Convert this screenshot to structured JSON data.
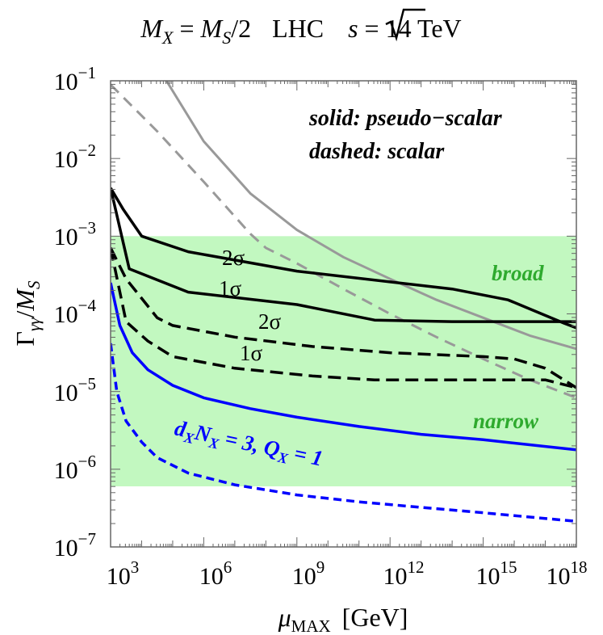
{
  "chart_data": {
    "type": "line",
    "title": {
      "lhs": "M",
      "lhs_sub": "X",
      "eq": " = ",
      "rhs": "M",
      "rhs_sub": "S",
      "rhs_tail": "/2",
      "collider": "LHC",
      "sqrt_arg": "s",
      "energy": " = 14 TeV"
    },
    "xlabel": {
      "main": "μ",
      "sub": "MAX",
      "unit": "[GeV]"
    },
    "ylabel": {
      "main": "Γ",
      "sub1": "γγ",
      "slash": "/",
      "m": "M",
      "sub2": "S"
    },
    "x_scale": "log10",
    "y_scale": "log10",
    "x_range": [
      3,
      18
    ],
    "y_range": [
      -7,
      -1
    ],
    "x_ticks": [
      {
        "base": "10",
        "exp": "3",
        "value": 3
      },
      {
        "base": "10",
        "exp": "6",
        "value": 6
      },
      {
        "base": "10",
        "exp": "9",
        "value": 9
      },
      {
        "base": "10",
        "exp": "12",
        "value": 12
      },
      {
        "base": "10",
        "exp": "15",
        "value": 15
      },
      {
        "base": "10",
        "exp": "18",
        "value": 18
      }
    ],
    "y_ticks": [
      {
        "base": "10",
        "exp": "−1",
        "value": -1
      },
      {
        "base": "10",
        "exp": "−2",
        "value": -2
      },
      {
        "base": "10",
        "exp": "−3",
        "value": -3
      },
      {
        "base": "10",
        "exp": "−4",
        "value": -4
      },
      {
        "base": "10",
        "exp": "−5",
        "value": -5
      },
      {
        "base": "10",
        "exp": "−6",
        "value": -6
      },
      {
        "base": "10",
        "exp": "−7",
        "value": -7
      }
    ],
    "band": {
      "y_min": -6.22,
      "y_max": -3.0,
      "color": "#c2f8c0"
    },
    "series": [
      {
        "name": "gray-solid",
        "color": "#999999",
        "dash": "none",
        "width": 3,
        "x": [
          4.8,
          6.0,
          7.5,
          9.0,
          10.5,
          12.0,
          13.5,
          15.0,
          16.5,
          18.0
        ],
        "y": [
          -1.0,
          -1.78,
          -2.45,
          -2.92,
          -3.27,
          -3.55,
          -3.82,
          -4.05,
          -4.28,
          -4.45
        ]
      },
      {
        "name": "gray-dashed",
        "color": "#999999",
        "dash": "14,9",
        "width": 3,
        "x": [
          3.0,
          4.5,
          6.0,
          7.5,
          8.0,
          9.0,
          10.5,
          12.0,
          13.5,
          15.0,
          16.5,
          18.0
        ],
        "y": [
          -1.05,
          -1.65,
          -2.3,
          -2.97,
          -3.15,
          -3.35,
          -3.68,
          -4.0,
          -4.3,
          -4.58,
          -4.85,
          -5.08
        ]
      },
      {
        "name": "black-solid-2sigma",
        "color": "#000000",
        "dash": "none",
        "width": 3.5,
        "x": [
          3.0,
          3.4,
          4.0,
          5.5,
          9.0,
          14.0,
          15.8,
          17.6,
          18.0
        ],
        "y": [
          -2.38,
          -2.65,
          -3.0,
          -3.2,
          -3.45,
          -3.68,
          -3.82,
          -4.12,
          -4.18
        ]
      },
      {
        "name": "black-solid-1sigma",
        "color": "#000000",
        "dash": "none",
        "width": 3.5,
        "x": [
          3.0,
          3.6,
          5.5,
          9.0,
          11.5,
          14.0,
          18.0
        ],
        "y": [
          -2.38,
          -3.42,
          -3.72,
          -3.88,
          -4.08,
          -4.1,
          -4.1
        ]
      },
      {
        "name": "black-dashed-2sigma",
        "color": "#000000",
        "dash": "16,8",
        "width": 3.5,
        "x": [
          3.0,
          3.5,
          4.5,
          5.0,
          7.0,
          9.5,
          12.0,
          15.0,
          16.0,
          17.0,
          18.0
        ],
        "y": [
          -3.15,
          -3.55,
          -4.05,
          -4.15,
          -4.3,
          -4.42,
          -4.5,
          -4.55,
          -4.58,
          -4.7,
          -4.95
        ]
      },
      {
        "name": "black-dashed-1sigma",
        "color": "#000000",
        "dash": "16,8",
        "width": 3.5,
        "x": [
          3.0,
          3.5,
          4.2,
          5.0,
          7.0,
          9.5,
          11.5,
          14.0,
          17.0,
          18.0
        ],
        "y": [
          -3.15,
          -4.1,
          -4.35,
          -4.55,
          -4.7,
          -4.8,
          -4.85,
          -4.85,
          -4.85,
          -4.95
        ]
      },
      {
        "name": "blue-solid",
        "color": "#0000ff",
        "dash": "none",
        "width": 3.5,
        "x": [
          3.0,
          3.3,
          3.7,
          4.2,
          5.0,
          6.0,
          7.5,
          9.0,
          11.0,
          13.0,
          15.0,
          18.0
        ],
        "y": [
          -3.6,
          -4.15,
          -4.5,
          -4.72,
          -4.92,
          -5.08,
          -5.22,
          -5.33,
          -5.45,
          -5.55,
          -5.62,
          -5.75
        ]
      },
      {
        "name": "blue-dashed",
        "color": "#0000ff",
        "dash": "10,6",
        "width": 3.5,
        "x": [
          3.0,
          3.2,
          3.5,
          4.0,
          4.5,
          5.5,
          7.0,
          9.0,
          11.0,
          13.0,
          15.0,
          18.0
        ],
        "y": [
          -4.38,
          -5.0,
          -5.38,
          -5.65,
          -5.85,
          -6.05,
          -6.2,
          -6.33,
          -6.42,
          -6.49,
          -6.56,
          -6.67
        ]
      }
    ],
    "annotations": {
      "solid_label": "solid: pseudo−scalar",
      "dashed_label": "dashed: scalar",
      "broad": "broad",
      "narrow": "narrow",
      "sigma2_solid": "2σ",
      "sigma1_solid": "1σ",
      "sigma2_dashed": "2σ",
      "sigma1_dashed": "1σ",
      "blue_label": {
        "d": "d",
        "d_sub": "X",
        "n": "N",
        "n_sub": "X",
        "eq1": " = 3, ",
        "q": "Q",
        "q_sub": "X",
        "eq2": " = 1"
      }
    },
    "colors": {
      "band_text": "#2eaa2e",
      "blue": "#0000ff",
      "axis": "#000000"
    }
  }
}
